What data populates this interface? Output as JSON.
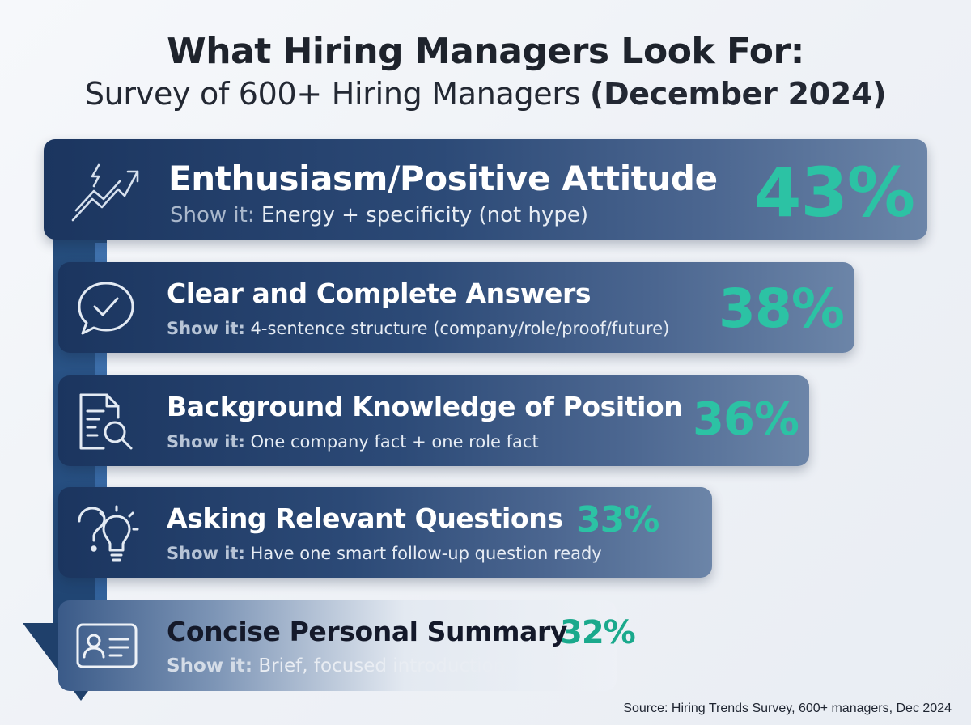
{
  "chart_data": {
    "type": "bar",
    "title": "What Hiring Managers Look For:",
    "subtitle": "Survey of 600+ Hiring Managers",
    "subtitle_bold": "(December 2024)",
    "tip_prefix": "Show it:",
    "unit": "%",
    "categories": [
      "Enthusiasm/Positive Attitude",
      "Clear and Complete Answers",
      "Background Knowledge of Position",
      "Asking Relevant Questions",
      "Concise Personal Summary"
    ],
    "values": [
      43,
      38,
      36,
      33,
      32
    ],
    "value_labels": [
      "43%",
      "38%",
      "36%",
      "33%",
      "32%"
    ],
    "tips": [
      "Energy + specificity (not hype)",
      "4-sentence structure (company/role/proof/future)",
      "One company fact + one role fact",
      "Have one smart follow-up question ready",
      "Brief, focused introduction"
    ],
    "icons": [
      "lightning-trend-icon",
      "chat-check-icon",
      "document-search-icon",
      "question-bulb-icon",
      "id-card-icon"
    ],
    "source": "Source: Hiring Trends Survey, 600+ managers, Dec 2024"
  },
  "colors": {
    "accent": "#2cc2a4",
    "card_dark": "#1b355f",
    "card_light": "#6c85a8",
    "spine": "#244a78"
  }
}
